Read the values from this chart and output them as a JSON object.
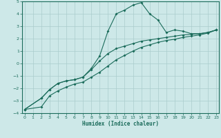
{
  "xlabel": "Humidex (Indice chaleur)",
  "x": [
    0,
    1,
    2,
    3,
    4,
    5,
    6,
    7,
    8,
    9,
    10,
    11,
    12,
    13,
    14,
    15,
    16,
    17,
    18,
    19,
    20,
    21,
    22,
    23
  ],
  "line1": [
    -3.7,
    null,
    -2.8,
    -2.1,
    -1.6,
    -1.4,
    -1.3,
    -1.1,
    -0.4,
    0.6,
    2.6,
    4.0,
    4.3,
    4.7,
    4.9,
    4.0,
    3.5,
    2.5,
    2.7,
    2.6,
    2.4,
    2.4,
    2.5,
    2.7
  ],
  "line2": [
    -3.7,
    null,
    -2.8,
    -2.1,
    -1.6,
    -1.4,
    -1.3,
    -1.1,
    -0.5,
    0.2,
    0.8,
    1.2,
    1.4,
    1.6,
    1.8,
    1.9,
    2.0,
    2.1,
    2.2,
    2.3,
    2.35,
    2.4,
    2.5,
    2.7
  ],
  "line3": [
    -3.7,
    null,
    -3.5,
    -2.6,
    -2.2,
    -1.9,
    -1.65,
    -1.5,
    -1.1,
    -0.7,
    -0.2,
    0.3,
    0.65,
    1.0,
    1.3,
    1.5,
    1.7,
    1.85,
    1.95,
    2.1,
    2.2,
    2.3,
    2.45,
    2.7
  ],
  "bg_color": "#cde8e8",
  "grid_color": "#aacccc",
  "line_color": "#1a6b5a",
  "spine_color": "#1a6b5a",
  "ylim": [
    -4,
    5
  ],
  "yticks": [
    -4,
    -3,
    -2,
    -1,
    0,
    1,
    2,
    3,
    4,
    5
  ],
  "xlim": [
    0,
    23
  ],
  "xticks": [
    0,
    1,
    2,
    3,
    4,
    5,
    6,
    7,
    8,
    9,
    10,
    11,
    12,
    13,
    14,
    15,
    16,
    17,
    18,
    19,
    20,
    21,
    22,
    23
  ]
}
